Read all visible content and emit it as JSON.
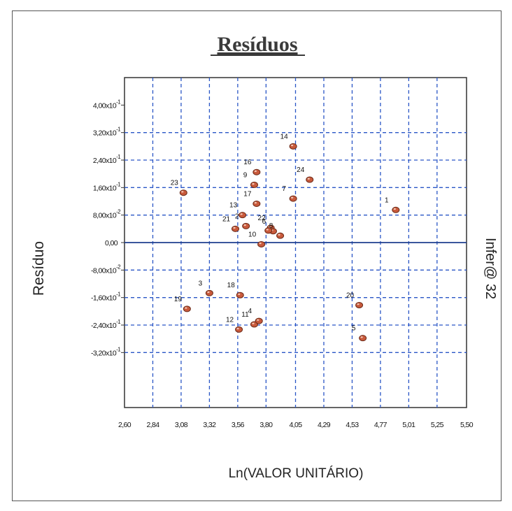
{
  "chart_data": {
    "type": "scatter",
    "title": "Resíduos",
    "xlabel": "Ln(VALOR UNITÁRIO)",
    "ylabel": "Resíduo",
    "right_label": "Infer@ 32",
    "xlim": [
      2.6,
      5.5
    ],
    "ylim": [
      -0.48,
      0.48
    ],
    "x_tick_values": [
      2.6,
      2.84,
      3.08,
      3.32,
      3.56,
      3.8,
      4.05,
      4.29,
      4.53,
      4.77,
      5.01,
      5.25,
      5.5
    ],
    "x_tick_labels": [
      "2,60",
      "2,84",
      "3,08",
      "3,32",
      "3,56",
      "3,80",
      "4,05",
      "4,29",
      "4,53",
      "4,77",
      "5,01",
      "5,25",
      "5,50"
    ],
    "y_tick_values": [
      0.4,
      0.32,
      0.24,
      0.16,
      0.08,
      0.0,
      -0.08,
      -0.16,
      -0.24,
      -0.32
    ],
    "y_tick_labels": [
      {
        "mant": "4,00x10",
        "exp": "-1"
      },
      {
        "mant": "3,20x10",
        "exp": "-1"
      },
      {
        "mant": "2,40x10",
        "exp": "-1"
      },
      {
        "mant": "1,60x10",
        "exp": "-1"
      },
      {
        "mant": "8,00x10",
        "exp": "-2"
      },
      {
        "mant": "0,00",
        "exp": ""
      },
      {
        "mant": "-8,00x10",
        "exp": "-2"
      },
      {
        "mant": "-1,60x10",
        "exp": "-1"
      },
      {
        "mant": "-2,40x10",
        "exp": "-1"
      },
      {
        "mant": "-3,20x10",
        "exp": "-1"
      }
    ],
    "grid": true,
    "zero_line_color": "#1f3f8f",
    "grid_color": "#2a56c6",
    "point_color": "#c85a3c",
    "points": [
      {
        "label": "1",
        "x": 4.9,
        "y": 0.095
      },
      {
        "label": "3",
        "x": 3.32,
        "y": -0.147
      },
      {
        "label": "5",
        "x": 4.62,
        "y": -0.278
      },
      {
        "label": "7",
        "x": 4.03,
        "y": 0.128
      },
      {
        "label": "9",
        "x": 3.7,
        "y": 0.168
      },
      {
        "label": "10",
        "x": 3.76,
        "y": -0.005
      },
      {
        "label": "11",
        "x": 3.7,
        "y": -0.238
      },
      {
        "label": "12",
        "x": 3.57,
        "y": -0.253
      },
      {
        "label": "13",
        "x": 3.6,
        "y": 0.08
      },
      {
        "label": "14",
        "x": 4.03,
        "y": 0.28
      },
      {
        "label": "16",
        "x": 3.72,
        "y": 0.205
      },
      {
        "label": "17",
        "x": 3.72,
        "y": 0.113
      },
      {
        "label": "18",
        "x": 3.58,
        "y": -0.153
      },
      {
        "label": "19",
        "x": 3.13,
        "y": -0.193
      },
      {
        "label": "20",
        "x": 4.59,
        "y": -0.182
      },
      {
        "label": "21",
        "x": 3.54,
        "y": 0.04
      },
      {
        "label": "22",
        "x": 3.84,
        "y": 0.043
      },
      {
        "label": "23",
        "x": 3.1,
        "y": 0.145
      },
      {
        "label": "24",
        "x": 4.17,
        "y": 0.183
      },
      {
        "label": "2",
        "x": 3.63,
        "y": 0.048
      },
      {
        "label": "4",
        "x": 3.74,
        "y": -0.228
      },
      {
        "label": "6",
        "x": 3.86,
        "y": 0.033
      },
      {
        "label": "8",
        "x": 3.92,
        "y": 0.02
      }
    ],
    "unlabeled_points": [
      {
        "x": 3.82,
        "y": 0.035
      }
    ]
  }
}
